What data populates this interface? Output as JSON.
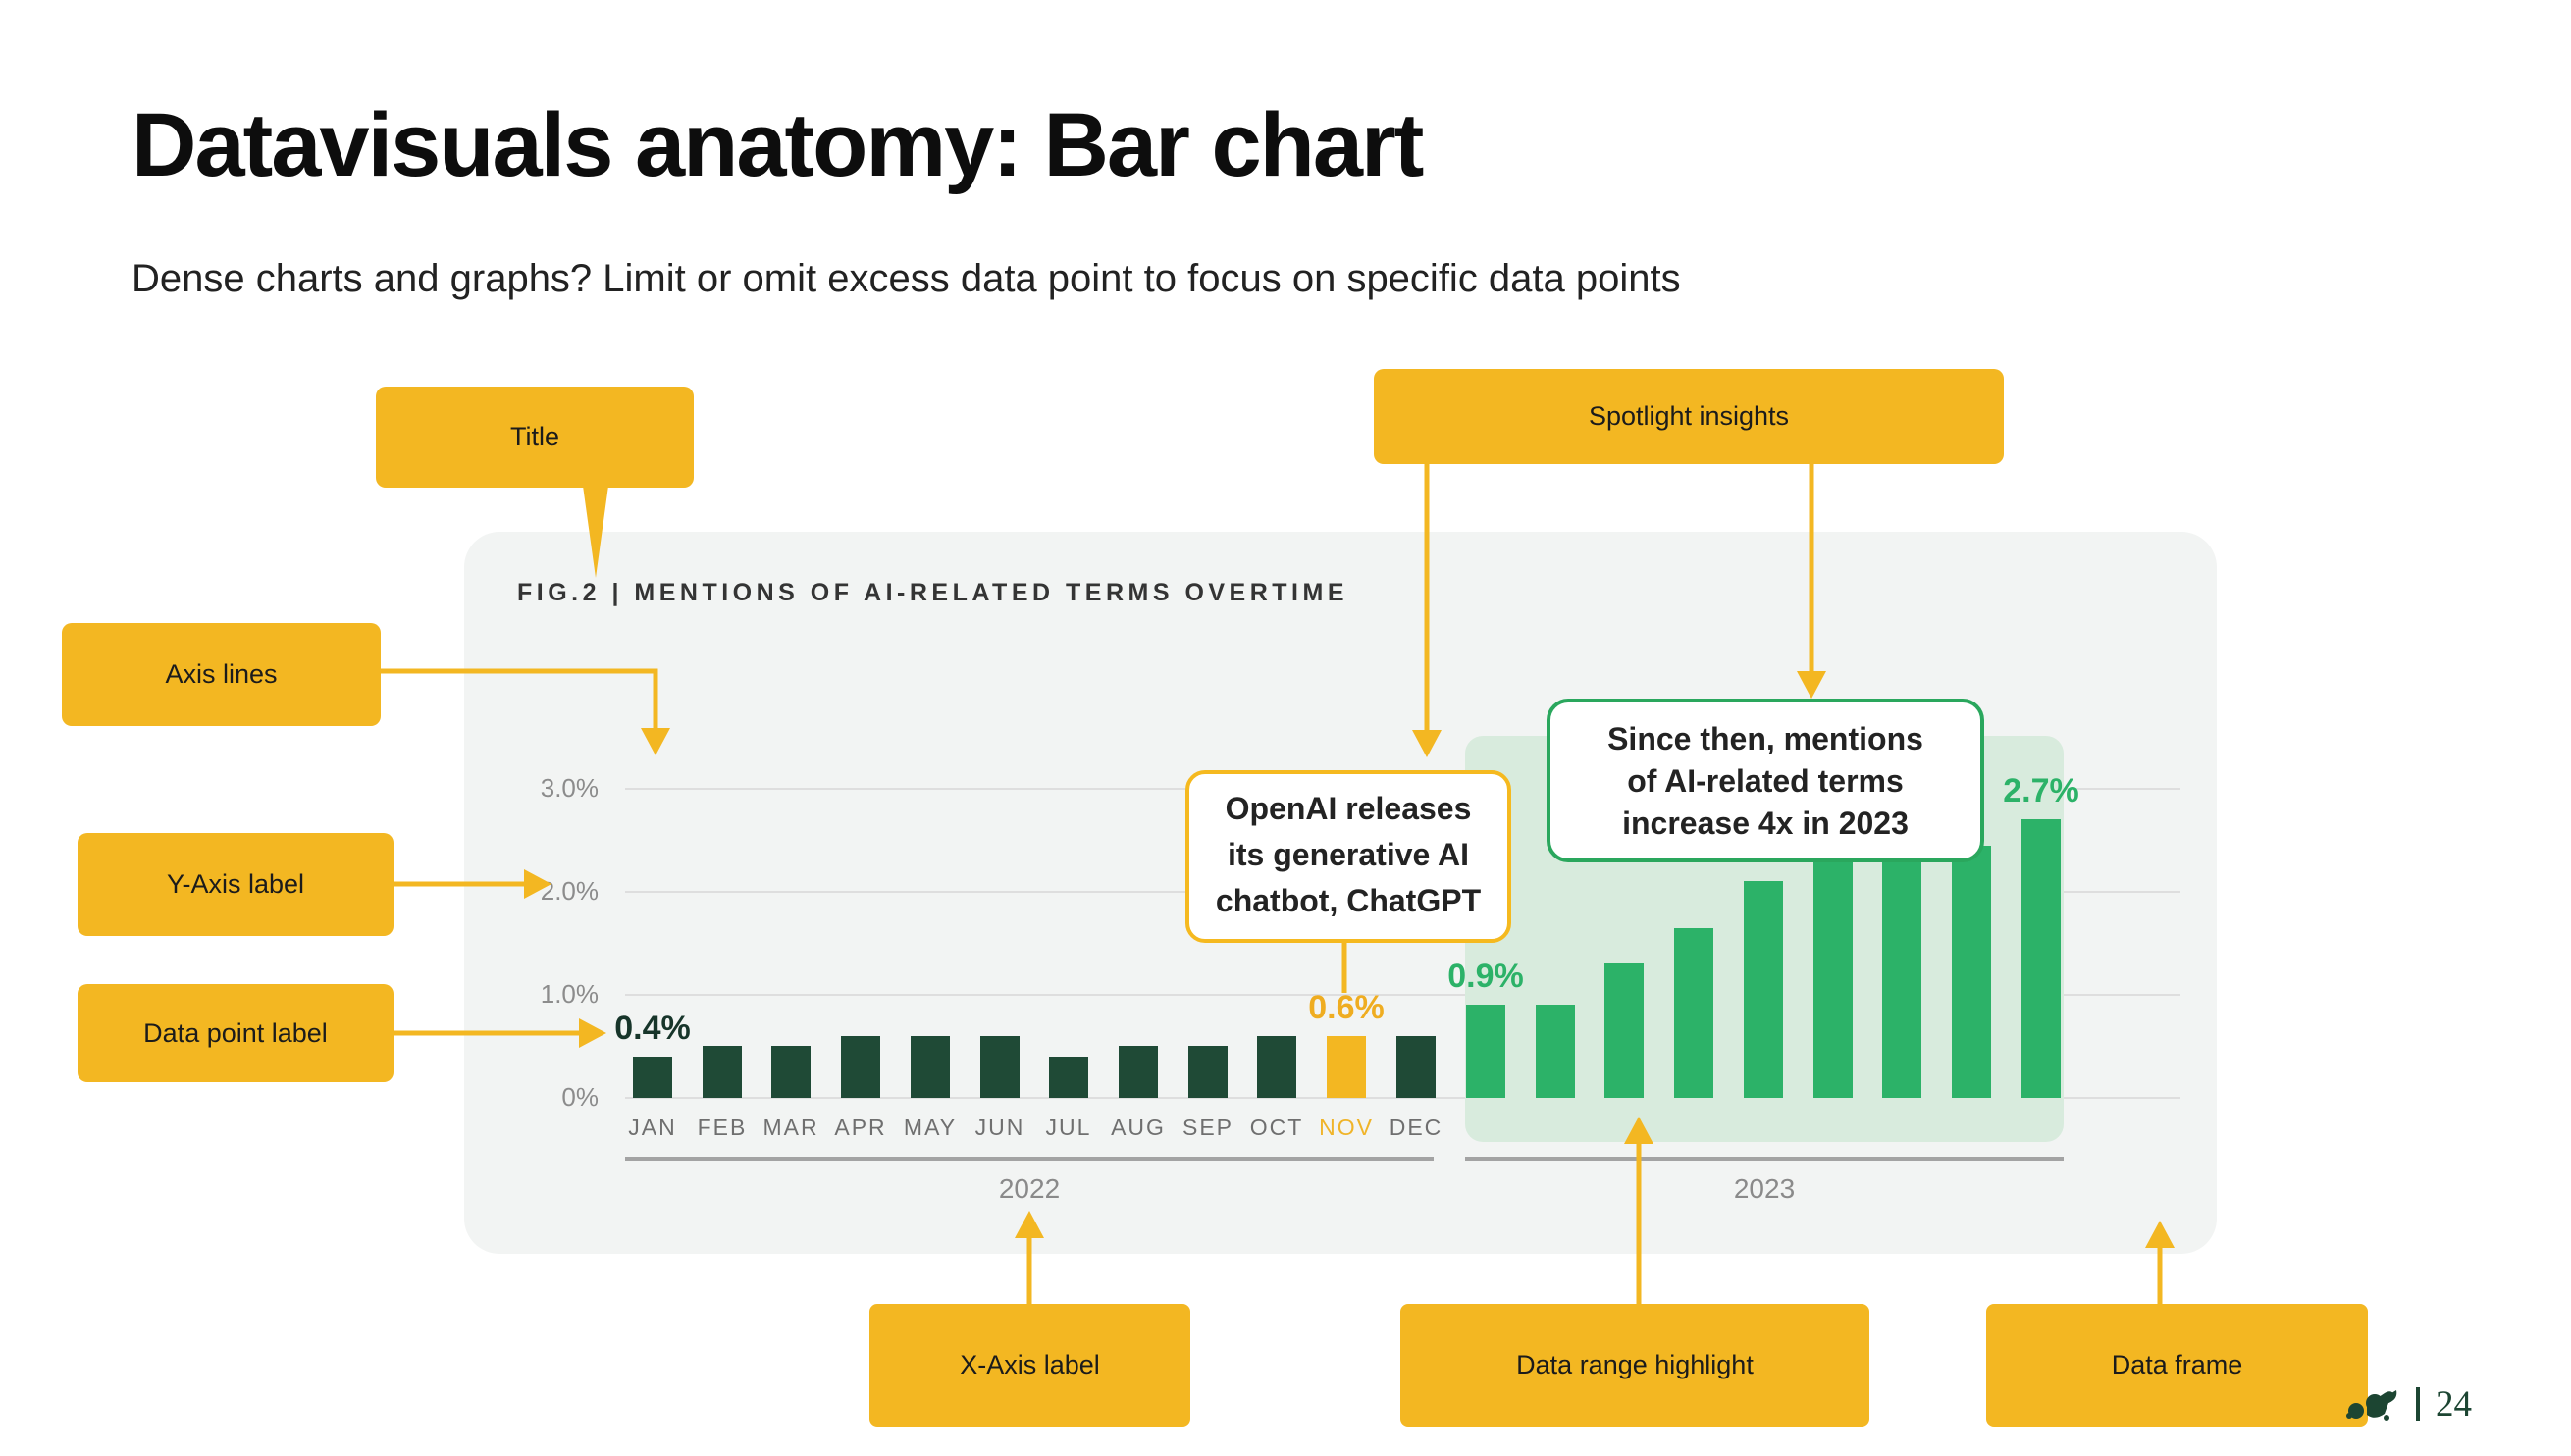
{
  "page": {
    "title": "Datavisuals anatomy: Bar chart",
    "subtitle": "Dense charts and graphs? Limit or omit excess data point to focus on specific data points"
  },
  "annotations": {
    "title": "Title",
    "spotlight_insights": "Spotlight insights",
    "axis_lines": "Axis lines",
    "y_axis_label": "Y-Axis label",
    "data_point_label": "Data point label",
    "x_axis_label": "X-Axis label",
    "data_range_highlight": "Data range highlight",
    "data_frame": "Data frame"
  },
  "callouts": {
    "openai": {
      "lines": [
        "OpenAI releases",
        "its generative AI",
        "chatbot, ChatGPT"
      ]
    },
    "since_then": {
      "lines": [
        "Since then, mentions",
        "of AI-related terms",
        "increase 4x in 2023"
      ]
    }
  },
  "chart_data": {
    "type": "bar",
    "title": "FIG.2 | MENTIONS OF AI-RELATED TERMS OVERTIME",
    "y_ticks": [
      {
        "label": "3.0%",
        "pct": 3.0
      },
      {
        "label": "2.0%",
        "pct": 2.0
      },
      {
        "label": "1.0%",
        "pct": 1.0
      },
      {
        "label": "0%",
        "pct": 0.0
      }
    ],
    "ylim_pct": [
      0,
      3.3
    ],
    "grid": true,
    "groups": [
      {
        "year": "2022",
        "months": [
          "JAN",
          "FEB",
          "MAR",
          "APR",
          "MAY",
          "JUN",
          "JUL",
          "AUG",
          "SEP",
          "OCT",
          "NOV",
          "DEC"
        ],
        "values_pct": [
          0.4,
          0.5,
          0.5,
          0.6,
          0.6,
          0.6,
          0.4,
          0.5,
          0.5,
          0.6,
          0.6,
          0.6
        ],
        "bar_color": "#1F4A36",
        "highlight_month_index": 10,
        "highlight_month_color": "#F3B722"
      },
      {
        "year": "2023",
        "months": [],
        "values_pct": [
          0.9,
          0.9,
          1.3,
          1.65,
          2.1,
          2.3,
          2.4,
          2.45,
          2.7
        ],
        "bar_color": "#2CB268",
        "range_highlighted": true
      }
    ],
    "point_labels": [
      {
        "text": "0.4%",
        "group": 0,
        "index": 0,
        "color": "#17352A"
      },
      {
        "text": "0.6%",
        "group": 0,
        "index": 10,
        "color": "#EFAD21"
      },
      {
        "text": "0.9%",
        "group": 1,
        "index": 0,
        "color": "#2CB268"
      },
      {
        "text": "2.7%",
        "group": 1,
        "index": 8,
        "color": "#2CB268"
      }
    ],
    "month_label_highlight": {
      "group": 0,
      "index": 10,
      "color": "#F0B429"
    }
  },
  "colors": {
    "accent_yellow": "#F3B722",
    "bar_dark_green": "#1F4A36",
    "bar_bright_green": "#2CB268",
    "range_highlight_bg": "#D8EBDD",
    "chart_panel_bg": "#F2F4F3",
    "callout_green_border": "#2AA75D",
    "footer_green": "#1C4532"
  },
  "footer": {
    "page_number": "24",
    "logo": "dog-logo"
  }
}
